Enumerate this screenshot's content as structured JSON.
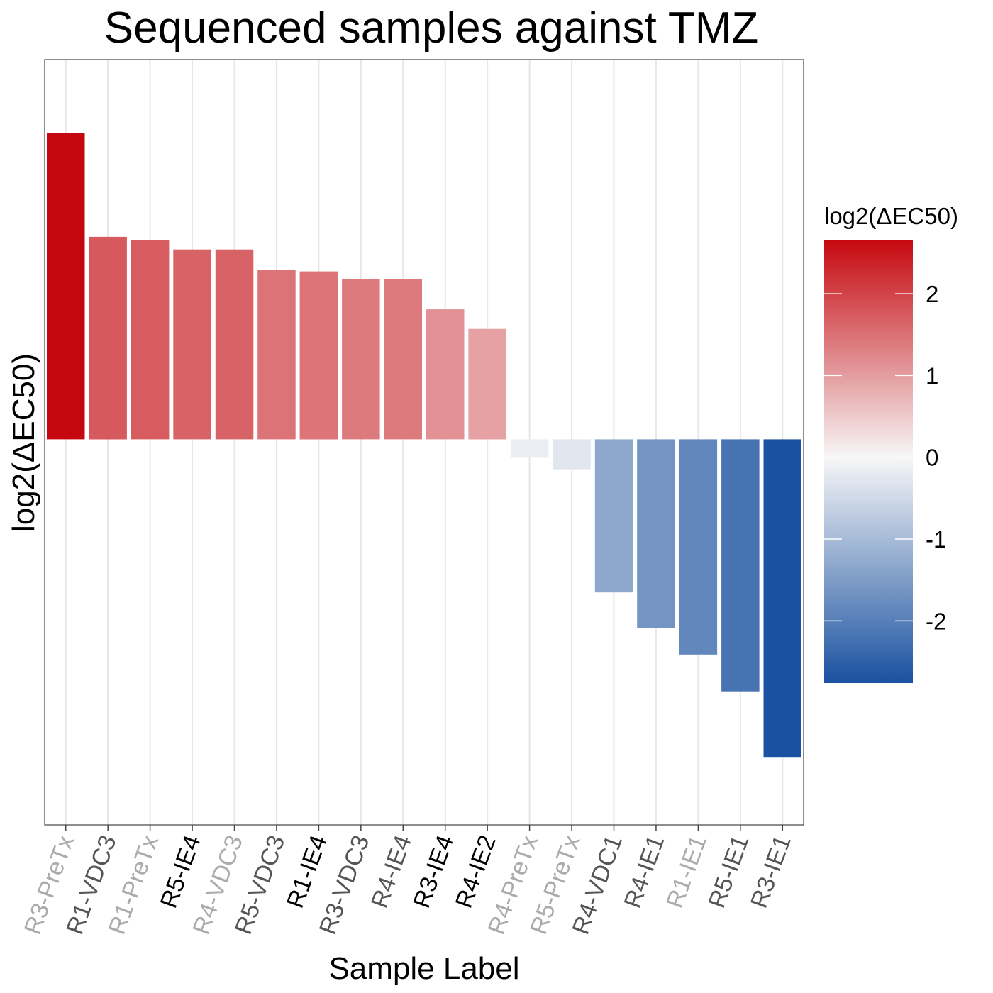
{
  "chart_data": {
    "type": "bar",
    "title": "Sequenced samples against TMZ",
    "xlabel": "Sample Label",
    "ylabel": "log2(ΔEC50)",
    "categories": [
      "R3-PreTx",
      "R1-VDC3",
      "R1-PreTx",
      "R5-IE4",
      "R4-VDC3",
      "R5-VDC3",
      "R1-IE4",
      "R3-VDC3",
      "R4-IE4",
      "R3-IE4",
      "R4-IE2",
      "R4-PreTx",
      "R5-PreTx",
      "R4-VDC1",
      "R4-IE1",
      "R1-IE1",
      "R5-IE1",
      "R3-IE1"
    ],
    "category_label_colors": [
      "#ababab",
      "#555555",
      "#ababab",
      "#000000",
      "#ababab",
      "#555555",
      "#000000",
      "#555555",
      "#555555",
      "#000000",
      "#000000",
      "#ababab",
      "#ababab",
      "#555555",
      "#555555",
      "#ababab",
      "#555555",
      "#555555"
    ],
    "values": [
      2.66,
      1.76,
      1.73,
      1.65,
      1.65,
      1.47,
      1.46,
      1.39,
      1.39,
      1.13,
      0.96,
      -0.16,
      -0.26,
      -1.33,
      -1.64,
      -1.87,
      -2.19,
      -2.76
    ],
    "ylim": [
      -3.35,
      3.3
    ],
    "y_ticks_shown": false,
    "grid": "vertical-major-only",
    "colorscale": {
      "low": "#1a51a0",
      "mid": "#f7f7f7",
      "high": "#c5080f",
      "midpoint": 0,
      "range": [
        -2.76,
        2.66
      ]
    },
    "legend": {
      "title": "log2(ΔEC50)",
      "placement": "right",
      "ticks": [
        2,
        1,
        0,
        -1,
        -2
      ],
      "tick_labels": [
        "2",
        "1",
        "0",
        "-1",
        "-2"
      ]
    }
  }
}
